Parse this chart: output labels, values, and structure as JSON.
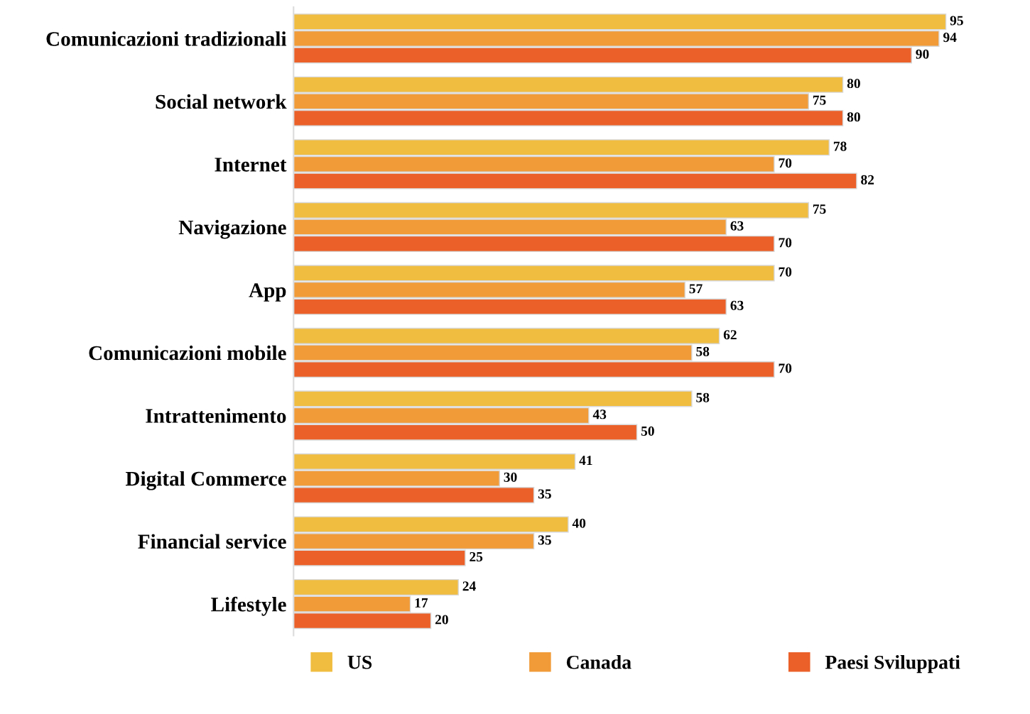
{
  "chart_data": {
    "type": "bar",
    "orientation": "horizontal",
    "categories": [
      "Comunicazioni tradizionali",
      "Social network",
      "Internet",
      "Navigazione",
      "App",
      "Comunicazioni mobile",
      "Intrattenimento",
      "Digital Commerce",
      "Financial service",
      "Lifestyle"
    ],
    "series": [
      {
        "name": "US",
        "color": "#f0bd40",
        "values": [
          95,
          80,
          78,
          75,
          70,
          62,
          58,
          41,
          40,
          24
        ]
      },
      {
        "name": "Canada",
        "color": "#f09a38",
        "values": [
          94,
          75,
          70,
          63,
          57,
          58,
          43,
          30,
          35,
          17
        ]
      },
      {
        "name": "Paesi Sviluppati",
        "color": "#ea6028",
        "values": [
          90,
          80,
          82,
          70,
          63,
          70,
          50,
          35,
          25,
          20
        ]
      }
    ],
    "data_labels": true,
    "legend": "bottom",
    "grid": false,
    "tick_labels": "y"
  }
}
